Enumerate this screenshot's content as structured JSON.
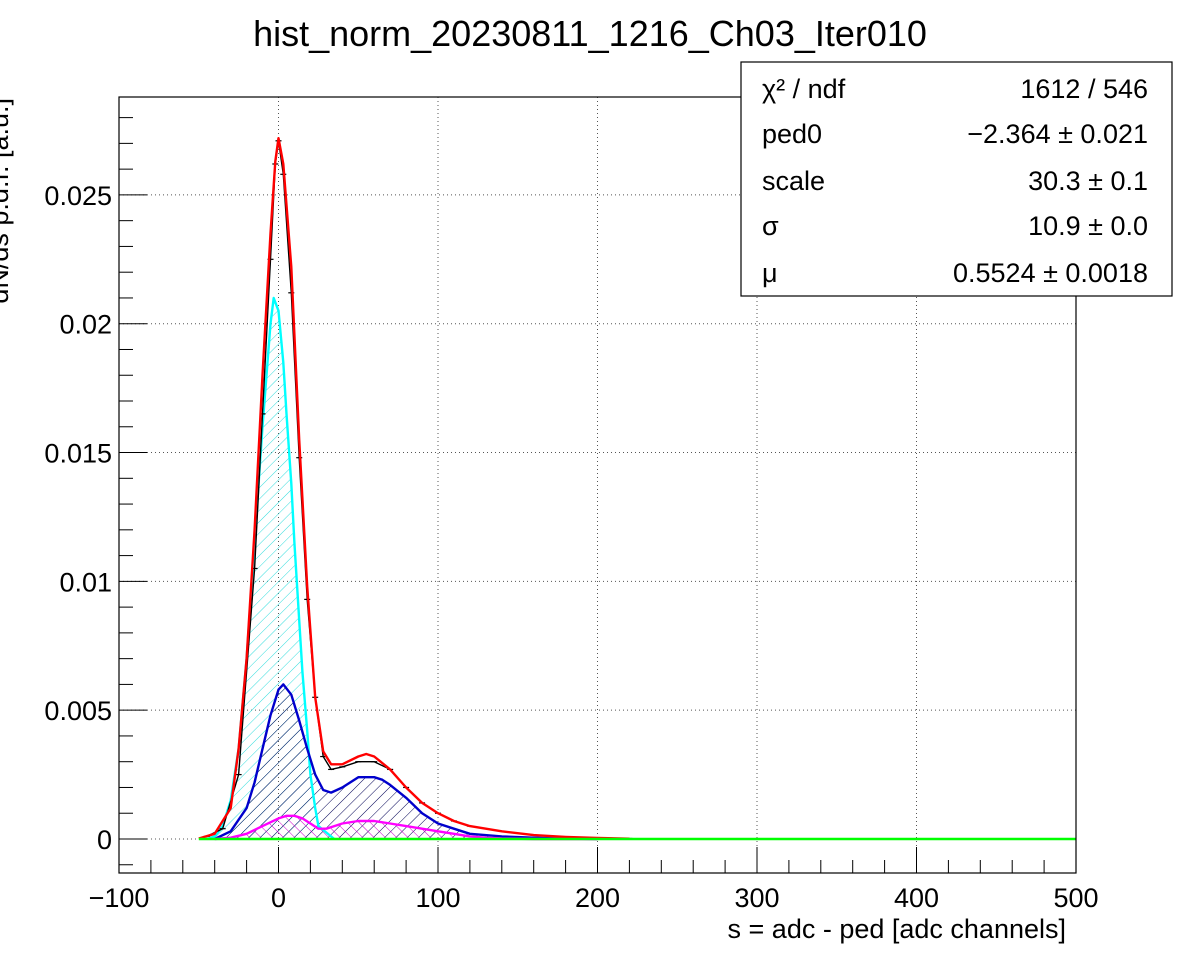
{
  "chart_data": {
    "type": "line",
    "title": "hist_norm_20230811_1216_Ch03_Iter010",
    "xlabel": "s = adc - ped [adc channels]",
    "ylabel": "dN/ds p.d.f. [a.u.]",
    "xlim": [
      -100,
      500
    ],
    "ylim": [
      -0.00132,
      0.0288
    ],
    "grid": true,
    "x_ticks": [
      "−100",
      "0",
      "100",
      "200",
      "300",
      "400",
      "500"
    ],
    "x_tick_values": [
      -100,
      0,
      100,
      200,
      300,
      400,
      500
    ],
    "y_ticks": [
      "0",
      "0.005",
      "0.01",
      "0.015",
      "0.02",
      "0.025"
    ],
    "y_tick_values": [
      0,
      0.005,
      0.01,
      0.015,
      0.02,
      0.025
    ],
    "stats_box": {
      "placement": "top-right",
      "rows": [
        {
          "key": "χ² / ndf",
          "value": "1612 / 546"
        },
        {
          "key": "ped0",
          "value": "−2.364 ± 0.021"
        },
        {
          "key": "scale",
          "value": "30.3 ± 0.1"
        },
        {
          "key": "σ",
          "value": "10.9 ± 0.0"
        },
        {
          "key": "μ",
          "value": "0.5524 ± 0.0018"
        }
      ]
    },
    "series": [
      {
        "color": "#000000",
        "x": [
          -45,
          -35,
          -25,
          -15,
          -10,
          -5,
          -2,
          0,
          3,
          8,
          13,
          18,
          23,
          28,
          33,
          40,
          50,
          60,
          70,
          80,
          90,
          100,
          110,
          120,
          140,
          160,
          180,
          200,
          220
        ],
        "y": [
          0.0001,
          0.0004,
          0.0025,
          0.0105,
          0.0165,
          0.0225,
          0.0262,
          0.0271,
          0.0258,
          0.0212,
          0.0148,
          0.0093,
          0.0055,
          0.0032,
          0.0027,
          0.0028,
          0.003,
          0.003,
          0.0027,
          0.002,
          0.0014,
          0.001,
          0.0007,
          0.0005,
          0.0003,
          0.00015,
          8e-05,
          4e-05,
          2e-05
        ]
      },
      {
        "color": "#ff0000",
        "x": [
          -50,
          -40,
          -30,
          -25,
          -20,
          -15,
          -10,
          -5,
          -2,
          0,
          3,
          8,
          13,
          18,
          23,
          28,
          33,
          40,
          50,
          55,
          60,
          70,
          80,
          90,
          100,
          110,
          120,
          140,
          160,
          180,
          200,
          220
        ],
        "y": [
          2e-05,
          0.0002,
          0.0012,
          0.0035,
          0.007,
          0.012,
          0.018,
          0.0235,
          0.0263,
          0.0272,
          0.0262,
          0.0222,
          0.0155,
          0.0098,
          0.0055,
          0.0034,
          0.0029,
          0.0029,
          0.0032,
          0.0033,
          0.0032,
          0.0027,
          0.002,
          0.0014,
          0.001,
          0.0007,
          0.0005,
          0.0003,
          0.00015,
          8e-05,
          4e-05,
          1e-05
        ]
      },
      {
        "color": "#00ffff",
        "hatched": true,
        "x": [
          -45,
          -40,
          -35,
          -30,
          -25,
          -20,
          -15,
          -10,
          -5,
          -3,
          0,
          3,
          5,
          8,
          10,
          13,
          15,
          18,
          20,
          23,
          25,
          35
        ],
        "y": [
          0,
          0.0001,
          0.0005,
          0.0015,
          0.0035,
          0.007,
          0.0115,
          0.016,
          0.02,
          0.021,
          0.0205,
          0.0185,
          0.0165,
          0.0138,
          0.0115,
          0.0085,
          0.0065,
          0.0042,
          0.0025,
          0.0012,
          0.0005,
          0
        ]
      },
      {
        "color": "#0000cc",
        "hatched": true,
        "x": [
          -40,
          -30,
          -20,
          -15,
          -10,
          -5,
          0,
          3,
          8,
          13,
          18,
          23,
          28,
          33,
          40,
          50,
          55,
          60,
          65,
          70,
          80,
          90,
          100,
          110,
          120,
          140,
          160,
          180,
          200
        ],
        "y": [
          0,
          0.0003,
          0.0012,
          0.0022,
          0.0035,
          0.0048,
          0.0058,
          0.006,
          0.0056,
          0.0046,
          0.0035,
          0.0025,
          0.0019,
          0.0018,
          0.002,
          0.0024,
          0.0024,
          0.0024,
          0.0023,
          0.0021,
          0.0016,
          0.001,
          0.0006,
          0.0004,
          0.0002,
          0.0001,
          5e-05,
          2e-05,
          0
        ]
      },
      {
        "color": "#ff00ff",
        "hatched": true,
        "x": [
          -40,
          -30,
          -20,
          -10,
          0,
          5,
          10,
          15,
          20,
          25,
          30,
          35,
          40,
          50,
          55,
          60,
          70,
          80,
          90,
          100,
          110,
          120,
          130,
          140,
          160,
          180,
          200
        ],
        "y": [
          0,
          5e-05,
          0.0002,
          0.0005,
          0.0008,
          0.0009,
          0.0009,
          0.0008,
          0.0006,
          0.0004,
          0.0004,
          0.0005,
          0.0006,
          0.0007,
          0.0007,
          0.0007,
          0.0006,
          0.0005,
          0.0004,
          0.0003,
          0.0002,
          0.0001,
          5e-05,
          2e-05,
          0,
          0,
          0
        ]
      },
      {
        "color": "#00ff00",
        "x": [
          -50,
          500
        ],
        "y": [
          0,
          0
        ]
      }
    ]
  }
}
